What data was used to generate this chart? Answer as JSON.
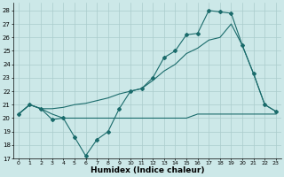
{
  "xlabel": "Humidex (Indice chaleur)",
  "bg_color": "#cce8e8",
  "grid_color": "#aacccc",
  "line_color": "#1a6b6b",
  "xlim": [
    -0.5,
    23.5
  ],
  "ylim": [
    17,
    28.6
  ],
  "yticks": [
    17,
    18,
    19,
    20,
    21,
    22,
    23,
    24,
    25,
    26,
    27,
    28
  ],
  "xticks": [
    0,
    1,
    2,
    3,
    4,
    5,
    6,
    7,
    8,
    9,
    10,
    11,
    12,
    13,
    14,
    15,
    16,
    17,
    18,
    19,
    20,
    21,
    22,
    23
  ],
  "series1_x": [
    0,
    1,
    2,
    3,
    4,
    5,
    6,
    7,
    8,
    9,
    10,
    11,
    12,
    13,
    14,
    15,
    16,
    17,
    18,
    19,
    20,
    21,
    22,
    23
  ],
  "series1_y": [
    20.3,
    21.0,
    20.7,
    19.9,
    20.0,
    18.6,
    17.2,
    18.4,
    19.0,
    20.7,
    22.0,
    22.2,
    23.0,
    24.5,
    25.0,
    26.2,
    26.3,
    28.0,
    27.9,
    27.8,
    25.4,
    23.3,
    21.0,
    20.5
  ],
  "series2_x": [
    0,
    1,
    2,
    3,
    4,
    5,
    6,
    7,
    8,
    9,
    10,
    11,
    12,
    13,
    14,
    15,
    16,
    17,
    18,
    19,
    20,
    21,
    22,
    23
  ],
  "series2_y": [
    20.3,
    21.0,
    20.7,
    20.3,
    20.0,
    20.0,
    20.0,
    20.0,
    20.0,
    20.0,
    20.0,
    20.0,
    20.0,
    20.0,
    20.0,
    20.0,
    20.3,
    20.3,
    20.3,
    20.3,
    20.3,
    20.3,
    20.3,
    20.3
  ],
  "series3_x": [
    0,
    1,
    2,
    3,
    4,
    5,
    6,
    7,
    8,
    9,
    10,
    11,
    12,
    13,
    14,
    15,
    16,
    17,
    18,
    19,
    20,
    21,
    22,
    23
  ],
  "series3_y": [
    20.3,
    21.0,
    20.7,
    20.7,
    20.8,
    21.0,
    21.1,
    21.3,
    21.5,
    21.8,
    22.0,
    22.2,
    22.8,
    23.5,
    24.0,
    24.8,
    25.2,
    25.8,
    26.0,
    27.0,
    25.4,
    23.3,
    21.0,
    20.5
  ]
}
